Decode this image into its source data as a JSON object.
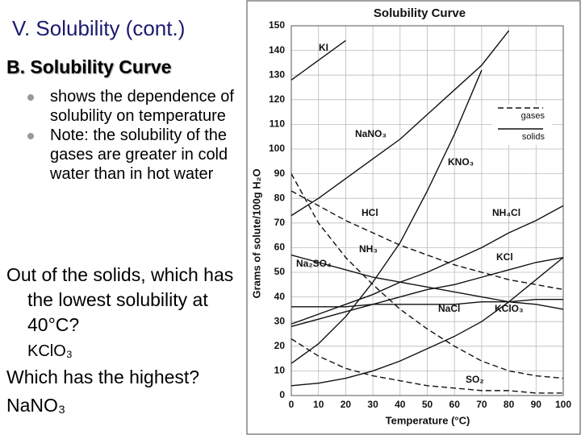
{
  "slide": {
    "title": "V. Solubility (cont.)",
    "subtitle": "B. Solubility Curve",
    "bullets": [
      "shows the dependence of solubility on temperature",
      "Note: the solubility of the gases are greater in cold water than in hot water"
    ],
    "question1": "Out of the solids, which has the lowest solubility at 40°C?",
    "answer1": "KClO₃",
    "question2": "Which has the highest?",
    "answer2": "NaNO₃"
  },
  "chart_data": {
    "type": "line",
    "title": "Solubility Curve",
    "x_label": "Temperature (°C)",
    "y_label": "Grams of solute/100g H₂O",
    "x": [
      0,
      10,
      20,
      30,
      40,
      50,
      60,
      70,
      80,
      90,
      100
    ],
    "xlim": [
      0,
      100
    ],
    "xticks": [
      0,
      10,
      20,
      30,
      40,
      50,
      60,
      70,
      80,
      90,
      100
    ],
    "ylim": [
      0,
      150
    ],
    "yticks": [
      0,
      10,
      20,
      30,
      40,
      50,
      60,
      70,
      80,
      90,
      100,
      110,
      120,
      130,
      140,
      150
    ],
    "grid": true,
    "color": "#111111",
    "legend": [
      {
        "label": "gases",
        "style": "dashed"
      },
      {
        "label": "solids",
        "style": "solid"
      }
    ],
    "series": [
      {
        "name": "KI",
        "style": "solid",
        "values": [
          128,
          136,
          144,
          null,
          null,
          null,
          null,
          null,
          null,
          null,
          null
        ]
      },
      {
        "name": "NaNO₃",
        "style": "solid",
        "values": [
          73,
          80,
          88,
          96,
          104,
          114,
          124,
          134,
          148,
          null,
          null
        ]
      },
      {
        "name": "KNO₃",
        "style": "solid",
        "values": [
          13,
          21,
          32,
          46,
          62,
          83,
          106,
          132,
          null,
          null,
          null
        ]
      },
      {
        "name": "HCl",
        "style": "dashed",
        "values": [
          83,
          77,
          71,
          66,
          61,
          57,
          53,
          50,
          47,
          45,
          43
        ]
      },
      {
        "name": "NH₄Cl",
        "style": "solid",
        "values": [
          29,
          33,
          37,
          41,
          46,
          50,
          55,
          60,
          66,
          71,
          77
        ]
      },
      {
        "name": "NH₃",
        "style": "dashed",
        "values": [
          90,
          70,
          56,
          45,
          35,
          27,
          20,
          14,
          10,
          8,
          7
        ]
      },
      {
        "name": "KCl",
        "style": "solid",
        "values": [
          28,
          31,
          34,
          37,
          40,
          43,
          45,
          48,
          51,
          54,
          56
        ]
      },
      {
        "name": "Na₂SO₄",
        "style": "solid",
        "values": [
          57,
          54,
          51,
          48,
          46,
          44,
          42,
          40,
          38,
          37,
          35
        ]
      },
      {
        "name": "NaCl",
        "style": "solid",
        "values": [
          36,
          36,
          36,
          37,
          37,
          37,
          37,
          38,
          38,
          39,
          39
        ]
      },
      {
        "name": "KClO₃",
        "style": "solid",
        "values": [
          4,
          5,
          7,
          10,
          14,
          19,
          24,
          30,
          38,
          47,
          56
        ]
      },
      {
        "name": "SO₂",
        "style": "dashed",
        "values": [
          23,
          16,
          11,
          8,
          6,
          4,
          3,
          2,
          2,
          1,
          1
        ]
      }
    ]
  }
}
